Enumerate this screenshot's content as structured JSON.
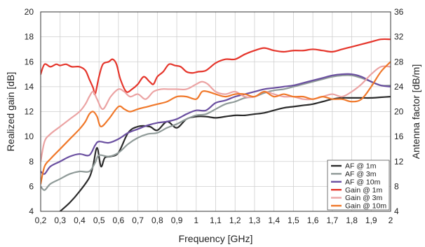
{
  "chart_data": {
    "type": "line",
    "xlabel": "Frequency [GHz]",
    "ylabel": "Realized gain [dB]",
    "y2label": "Antenna factor [dB/m]",
    "xlim": [
      0.2,
      2.0
    ],
    "ylim": [
      4,
      20
    ],
    "y2lim": [
      4,
      36
    ],
    "x_ticks": [
      "0,2",
      "0,3",
      "0,4",
      "0,5",
      "0,6",
      "0,7",
      "0,8",
      "0,9",
      "1",
      "1,1",
      "1,2",
      "1,3",
      "1,4",
      "1,5",
      "1,6",
      "1,7",
      "1,8",
      "1,9",
      "2"
    ],
    "y_ticks": [
      "4",
      "6",
      "8",
      "10",
      "12",
      "14",
      "16",
      "18",
      "20"
    ],
    "y2_ticks": [
      "4",
      "8",
      "12",
      "16",
      "20",
      "24",
      "28",
      "32",
      "36"
    ],
    "grid": true,
    "legend_position": "bottom-right",
    "series": [
      {
        "name": "AF @ 1m",
        "color": "#2b2b2b",
        "axis": "right",
        "x": [
          0.3,
          0.35,
          0.4,
          0.45,
          0.47,
          0.49,
          0.51,
          0.53,
          0.56,
          0.6,
          0.65,
          0.7,
          0.76,
          0.8,
          0.85,
          0.9,
          0.95,
          1.0,
          1.05,
          1.1,
          1.15,
          1.2,
          1.25,
          1.3,
          1.35,
          1.4,
          1.45,
          1.5,
          1.55,
          1.6,
          1.65,
          1.7,
          1.75,
          1.8,
          1.85,
          1.9,
          1.95,
          2.0
        ],
        "y": [
          4.0,
          5.4,
          7.2,
          9.4,
          11.4,
          14.2,
          11.2,
          12.6,
          12.8,
          13.4,
          16.6,
          17.6,
          17.6,
          17.0,
          18.4,
          17.4,
          18.8,
          19.2,
          19.2,
          19.0,
          19.2,
          19.4,
          19.4,
          19.6,
          19.8,
          20.2,
          20.6,
          20.8,
          21.0,
          21.2,
          21.6,
          22.0,
          22.2,
          22.2,
          22.2,
          22.2,
          22.3,
          22.4
        ]
      },
      {
        "name": "AF @ 3m",
        "color": "#8f9a98",
        "axis": "right",
        "x": [
          0.2,
          0.22,
          0.25,
          0.3,
          0.35,
          0.4,
          0.45,
          0.48,
          0.5,
          0.55,
          0.6,
          0.65,
          0.7,
          0.75,
          0.8,
          0.85,
          0.9,
          0.95,
          1.0,
          1.05,
          1.1,
          1.15,
          1.2,
          1.25,
          1.3,
          1.35,
          1.4,
          1.45,
          1.5,
          1.55,
          1.6,
          1.65,
          1.7,
          1.75,
          1.8,
          1.85,
          1.9,
          1.95,
          2.0
        ],
        "y": [
          8.0,
          7.4,
          8.4,
          9.2,
          10.0,
          10.4,
          10.4,
          11.8,
          13.0,
          12.8,
          13.4,
          14.8,
          15.8,
          16.4,
          16.6,
          17.4,
          18.0,
          18.8,
          19.4,
          19.6,
          20.4,
          21.2,
          21.6,
          22.2,
          22.4,
          23.0,
          23.4,
          23.6,
          24.0,
          24.4,
          24.8,
          25.2,
          25.6,
          25.8,
          25.8,
          25.4,
          24.8,
          24.2,
          24.2
        ]
      },
      {
        "name": "AF @ 10m",
        "color": "#6a4fa0",
        "axis": "right",
        "x": [
          0.2,
          0.22,
          0.25,
          0.3,
          0.35,
          0.4,
          0.45,
          0.48,
          0.5,
          0.55,
          0.6,
          0.65,
          0.7,
          0.75,
          0.8,
          0.85,
          0.9,
          0.95,
          1.0,
          1.05,
          1.1,
          1.15,
          1.2,
          1.25,
          1.3,
          1.35,
          1.4,
          1.45,
          1.5,
          1.55,
          1.6,
          1.65,
          1.7,
          1.75,
          1.8,
          1.85,
          1.9,
          1.95,
          2.0
        ],
        "y": [
          10.4,
          10.0,
          11.2,
          12.0,
          12.8,
          13.2,
          13.0,
          14.6,
          15.2,
          15.0,
          15.6,
          16.6,
          17.2,
          17.8,
          18.2,
          18.4,
          18.8,
          19.6,
          20.2,
          20.2,
          21.4,
          21.8,
          22.4,
          22.8,
          23.2,
          23.6,
          23.8,
          24.0,
          24.2,
          24.6,
          25.0,
          25.4,
          25.8,
          26.0,
          26.0,
          25.6,
          24.8,
          24.2,
          24.0
        ]
      },
      {
        "name": "Gain @ 1m",
        "color": "#e5352b",
        "axis": "left",
        "x": [
          0.2,
          0.22,
          0.25,
          0.28,
          0.3,
          0.33,
          0.36,
          0.4,
          0.43,
          0.45,
          0.47,
          0.48,
          0.5,
          0.52,
          0.55,
          0.57,
          0.59,
          0.61,
          0.64,
          0.67,
          0.7,
          0.73,
          0.76,
          0.78,
          0.8,
          0.83,
          0.86,
          0.89,
          0.92,
          0.95,
          0.98,
          1.01,
          1.05,
          1.1,
          1.15,
          1.2,
          1.25,
          1.3,
          1.35,
          1.4,
          1.45,
          1.5,
          1.55,
          1.6,
          1.65,
          1.7,
          1.75,
          1.8,
          1.85,
          1.9,
          1.95,
          2.0
        ],
        "y": [
          15.0,
          15.8,
          15.6,
          15.8,
          15.7,
          15.8,
          15.6,
          15.6,
          15.3,
          14.6,
          13.9,
          13.4,
          14.8,
          15.8,
          16.0,
          16.2,
          15.8,
          14.6,
          13.6,
          13.8,
          14.2,
          14.8,
          14.4,
          14.2,
          14.8,
          15.2,
          15.8,
          15.7,
          15.6,
          15.2,
          15.1,
          15.2,
          15.3,
          15.9,
          16.2,
          16.2,
          16.6,
          16.9,
          17.1,
          16.9,
          16.8,
          16.9,
          16.9,
          17.0,
          16.9,
          16.8,
          17.0,
          17.2,
          17.4,
          17.6,
          17.8,
          17.8
        ]
      },
      {
        "name": "Gain @ 3m",
        "color": "#eba3a3",
        "axis": "left",
        "x": [
          0.2,
          0.22,
          0.25,
          0.3,
          0.35,
          0.4,
          0.43,
          0.45,
          0.47,
          0.49,
          0.52,
          0.56,
          0.6,
          0.63,
          0.66,
          0.7,
          0.74,
          0.78,
          0.82,
          0.86,
          0.9,
          0.95,
          1.0,
          1.03,
          1.06,
          1.1,
          1.15,
          1.2,
          1.25,
          1.3,
          1.35,
          1.4,
          1.45,
          1.5,
          1.55,
          1.6,
          1.65,
          1.7,
          1.75,
          1.8,
          1.85,
          1.9,
          1.95,
          2.0
        ],
        "y": [
          8.0,
          9.6,
          10.2,
          10.8,
          11.4,
          12.0,
          12.6,
          13.2,
          13.6,
          13.0,
          12.2,
          13.2,
          13.8,
          13.6,
          13.2,
          13.4,
          13.0,
          13.6,
          13.8,
          13.8,
          13.8,
          13.8,
          14.2,
          14.4,
          14.2,
          13.6,
          13.4,
          13.6,
          13.2,
          13.2,
          13.6,
          13.4,
          13.2,
          13.2,
          13.0,
          13.0,
          13.2,
          13.4,
          13.2,
          13.6,
          14.2,
          15.0,
          15.6,
          15.6
        ]
      },
      {
        "name": "Gain @ 10m",
        "color": "#f0782a",
        "axis": "left",
        "x": [
          0.2,
          0.22,
          0.25,
          0.3,
          0.35,
          0.4,
          0.43,
          0.45,
          0.47,
          0.49,
          0.51,
          0.55,
          0.6,
          0.63,
          0.66,
          0.7,
          0.75,
          0.8,
          0.85,
          0.9,
          0.95,
          1.0,
          1.03,
          1.06,
          1.1,
          1.15,
          1.2,
          1.25,
          1.3,
          1.35,
          1.4,
          1.45,
          1.5,
          1.55,
          1.6,
          1.65,
          1.7,
          1.75,
          1.8,
          1.85,
          1.9,
          1.95,
          2.0
        ],
        "y": [
          6.2,
          7.6,
          8.2,
          9.0,
          9.8,
          10.6,
          11.2,
          11.8,
          12.0,
          11.6,
          10.8,
          11.4,
          12.4,
          12.2,
          12.0,
          12.2,
          12.4,
          12.6,
          12.8,
          13.2,
          13.2,
          13.0,
          13.6,
          13.6,
          13.4,
          13.2,
          13.4,
          13.4,
          13.2,
          13.6,
          13.2,
          13.4,
          13.2,
          13.2,
          13.0,
          13.2,
          13.0,
          13.0,
          12.8,
          13.0,
          14.0,
          15.2,
          16.0
        ]
      }
    ]
  }
}
